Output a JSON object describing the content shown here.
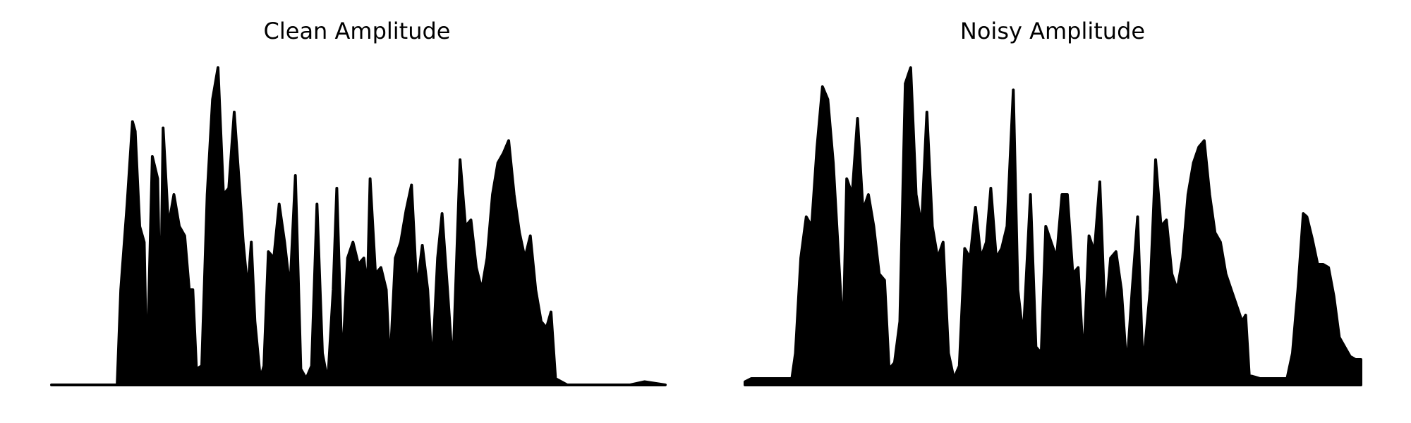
{
  "chart_data": [
    {
      "type": "area",
      "title": "Clean Amplitude",
      "color": "#000000",
      "xlim": [
        0,
        682
      ],
      "ylim": [
        0,
        1
      ],
      "x": [
        0,
        73,
        77,
        84,
        90,
        93,
        98,
        103,
        106,
        112,
        118,
        121,
        124,
        130,
        136,
        142,
        148,
        153,
        157,
        161,
        167,
        173,
        179,
        185,
        191,
        197,
        203,
        209,
        213,
        218,
        222,
        226,
        232,
        236,
        241,
        247,
        253,
        259,
        265,
        271,
        277,
        283,
        289,
        295,
        301,
        307,
        313,
        317,
        323,
        329,
        335,
        341,
        347,
        351,
        354,
        360,
        366,
        372,
        376,
        382,
        388,
        394,
        400,
        406,
        412,
        418,
        423,
        429,
        434,
        440,
        446,
        454,
        460,
        466,
        472,
        478,
        484,
        490,
        496,
        502,
        508,
        514,
        520,
        526,
        532,
        538,
        544,
        550,
        555,
        560,
        573,
        643,
        659,
        682
      ],
      "values": [
        0,
        0,
        0.3,
        0.57,
        0.83,
        0.8,
        0.5,
        0.45,
        0.02,
        0.72,
        0.65,
        0.2,
        0.81,
        0.5,
        0.6,
        0.5,
        0.47,
        0.3,
        0.3,
        0.05,
        0.06,
        0.6,
        0.9,
        1.0,
        0.6,
        0.62,
        0.86,
        0.62,
        0.45,
        0.3,
        0.45,
        0.2,
        0.02,
        0.06,
        0.42,
        0.4,
        0.57,
        0.45,
        0.3,
        0.66,
        0.05,
        0.02,
        0.06,
        0.57,
        0.1,
        0.01,
        0.3,
        0.62,
        0.05,
        0.4,
        0.45,
        0.38,
        0.4,
        0.3,
        0.65,
        0.35,
        0.37,
        0.3,
        0.05,
        0.4,
        0.45,
        0.55,
        0.63,
        0.3,
        0.44,
        0.3,
        0.05,
        0.4,
        0.54,
        0.3,
        0.05,
        0.71,
        0.5,
        0.52,
        0.37,
        0.3,
        0.4,
        0.6,
        0.7,
        0.73,
        0.77,
        0.6,
        0.48,
        0.4,
        0.47,
        0.3,
        0.2,
        0.18,
        0.23,
        0.02,
        0,
        0,
        0.01,
        0
      ]
    },
    {
      "type": "area",
      "title": "Noisy Amplitude",
      "color": "#000000",
      "xlim": [
        0,
        684
      ],
      "ylim": [
        0,
        1
      ],
      "x": [
        0,
        7,
        52,
        56,
        62,
        68,
        74,
        80,
        86,
        92,
        98,
        104,
        109,
        113,
        119,
        125,
        131,
        137,
        143,
        149,
        155,
        160,
        166,
        172,
        178,
        184,
        190,
        196,
        202,
        208,
        214,
        220,
        226,
        232,
        238,
        244,
        250,
        256,
        262,
        268,
        273,
        279,
        285,
        291,
        298,
        303,
        309,
        317,
        323,
        329,
        334,
        340,
        346,
        352,
        358,
        364,
        370,
        376,
        382,
        388,
        394,
        400,
        406,
        412,
        418,
        424,
        430,
        436,
        442,
        450,
        456,
        462,
        468,
        474,
        480,
        486,
        492,
        498,
        504,
        510,
        516,
        522,
        528,
        534,
        540,
        546,
        552,
        556,
        560,
        572,
        602,
        608,
        614,
        620,
        624,
        630,
        636,
        642,
        648,
        654,
        660,
        666,
        672,
        678,
        684
      ],
      "values": [
        0.01,
        0.02,
        0.02,
        0.1,
        0.4,
        0.53,
        0.5,
        0.75,
        0.94,
        0.9,
        0.7,
        0.4,
        0.15,
        0.65,
        0.6,
        0.84,
        0.55,
        0.6,
        0.5,
        0.35,
        0.33,
        0.05,
        0.07,
        0.2,
        0.95,
        1.0,
        0.6,
        0.5,
        0.86,
        0.5,
        0.4,
        0.45,
        0.1,
        0.02,
        0.06,
        0.43,
        0.4,
        0.56,
        0.4,
        0.45,
        0.62,
        0.4,
        0.43,
        0.5,
        0.93,
        0.3,
        0.15,
        0.6,
        0.12,
        0.1,
        0.5,
        0.45,
        0.4,
        0.6,
        0.6,
        0.35,
        0.37,
        0.07,
        0.47,
        0.42,
        0.64,
        0.2,
        0.4,
        0.42,
        0.3,
        0.05,
        0.3,
        0.53,
        0.05,
        0.3,
        0.71,
        0.5,
        0.52,
        0.35,
        0.3,
        0.4,
        0.6,
        0.7,
        0.75,
        0.77,
        0.6,
        0.48,
        0.45,
        0.35,
        0.3,
        0.25,
        0.2,
        0.22,
        0.03,
        0.02,
        0.02,
        0.1,
        0.3,
        0.54,
        0.53,
        0.46,
        0.38,
        0.38,
        0.37,
        0.28,
        0.15,
        0.12,
        0.09,
        0.08,
        0.08
      ]
    }
  ]
}
